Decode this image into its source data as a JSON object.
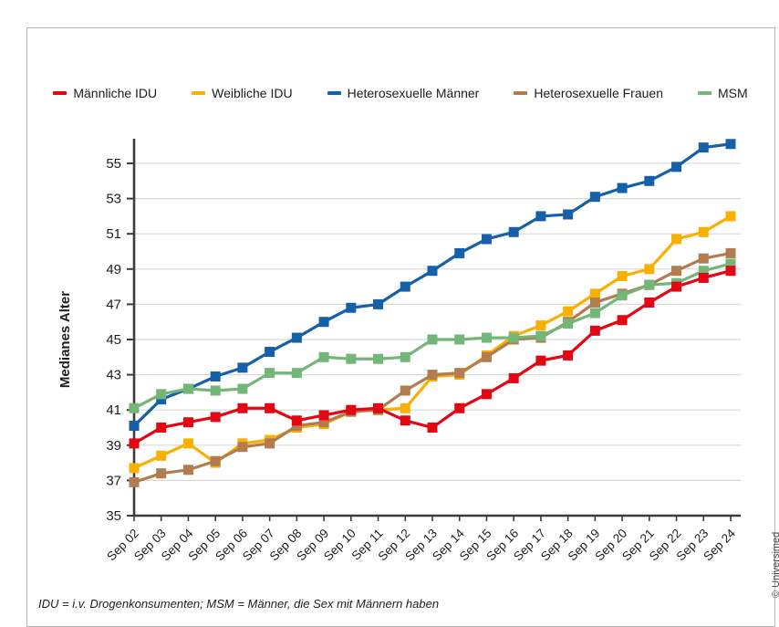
{
  "figure": {
    "y_axis_title": "Medianes Alter",
    "footnote": "IDU = i.v. Drogenkonsumenten; MSM = Männer, die Sex mit Männern haben",
    "copyright": "© Universimed",
    "colors": {
      "axis": "#3c3c3b",
      "grid": "#d9d9d9",
      "frame": "#b5b5b5",
      "text": "#1d1d1b",
      "background": "#ffffff"
    }
  },
  "legend": {
    "items": [
      {
        "label": "Männliche IDU",
        "color": "#e30613"
      },
      {
        "label": "Weibliche IDU",
        "color": "#f9b000"
      },
      {
        "label": "Heterosexuelle Männer",
        "color": "#1560a9"
      },
      {
        "label": "Heterosexuelle Frauen",
        "color": "#b27c4f"
      },
      {
        "label": "MSM",
        "color": "#74b578"
      }
    ]
  },
  "chart_data": {
    "type": "line",
    "title": "",
    "xlabel": "",
    "ylabel": "Medianes Alter",
    "ylim": [
      35,
      56.5
    ],
    "yticks": [
      35,
      37,
      39,
      41,
      43,
      45,
      47,
      49,
      51,
      53,
      55
    ],
    "grid": true,
    "legend_position": "top",
    "marker": "square",
    "categories": [
      "Sep 02",
      "Sep 03",
      "Sep 04",
      "Sep 05",
      "Sep 06",
      "Sep 07",
      "Sep 08",
      "Sep 09",
      "Sep 10",
      "Sep 11",
      "Sep 12",
      "Sep 13",
      "Sep 14",
      "Sep 15",
      "Sep 16",
      "Sep 17",
      "Sep 18",
      "Sep 19",
      "Sep 20",
      "Sep 21",
      "Sep 22",
      "Sep 23",
      "Sep 24"
    ],
    "draw_order": [
      1,
      3,
      2,
      4,
      0
    ],
    "series": [
      {
        "name": "Männliche IDU",
        "color": "#e30613",
        "values": [
          39.1,
          40.0,
          40.3,
          40.6,
          41.1,
          41.1,
          40.4,
          40.7,
          41.0,
          41.1,
          40.4,
          40.0,
          41.1,
          41.9,
          42.8,
          43.8,
          44.1,
          45.5,
          46.1,
          47.1,
          48.0,
          48.5,
          48.9
        ]
      },
      {
        "name": "Weibliche IDU",
        "color": "#f9b000",
        "values": [
          37.7,
          38.4,
          39.1,
          38.0,
          39.1,
          39.3,
          40.0,
          40.2,
          40.9,
          41.0,
          41.1,
          42.9,
          43.0,
          44.1,
          45.2,
          45.8,
          46.6,
          47.6,
          48.6,
          49.0,
          50.7,
          51.1,
          52.0
        ]
      },
      {
        "name": "Heterosexuelle Männer",
        "color": "#1560a9",
        "values": [
          40.1,
          41.6,
          42.2,
          42.9,
          43.4,
          44.3,
          45.1,
          46.0,
          46.8,
          47.0,
          48.0,
          48.9,
          49.9,
          50.7,
          51.1,
          52.0,
          52.1,
          53.1,
          53.6,
          54.0,
          54.8,
          55.9,
          56.1
        ]
      },
      {
        "name": "Heterosexuelle Frauen",
        "color": "#b27c4f",
        "values": [
          36.9,
          37.4,
          37.6,
          38.1,
          38.9,
          39.1,
          40.1,
          40.3,
          40.9,
          41.0,
          42.1,
          43.0,
          43.1,
          44.0,
          45.0,
          45.1,
          46.0,
          47.1,
          47.6,
          48.1,
          48.9,
          49.6,
          49.9
        ]
      },
      {
        "name": "MSM",
        "color": "#74b578",
        "values": [
          41.1,
          41.9,
          42.2,
          42.1,
          42.2,
          43.1,
          43.1,
          44.0,
          43.9,
          43.9,
          44.0,
          45.0,
          45.0,
          45.1,
          45.1,
          45.2,
          45.9,
          46.5,
          47.5,
          48.1,
          48.2,
          48.9,
          49.3
        ]
      }
    ]
  }
}
